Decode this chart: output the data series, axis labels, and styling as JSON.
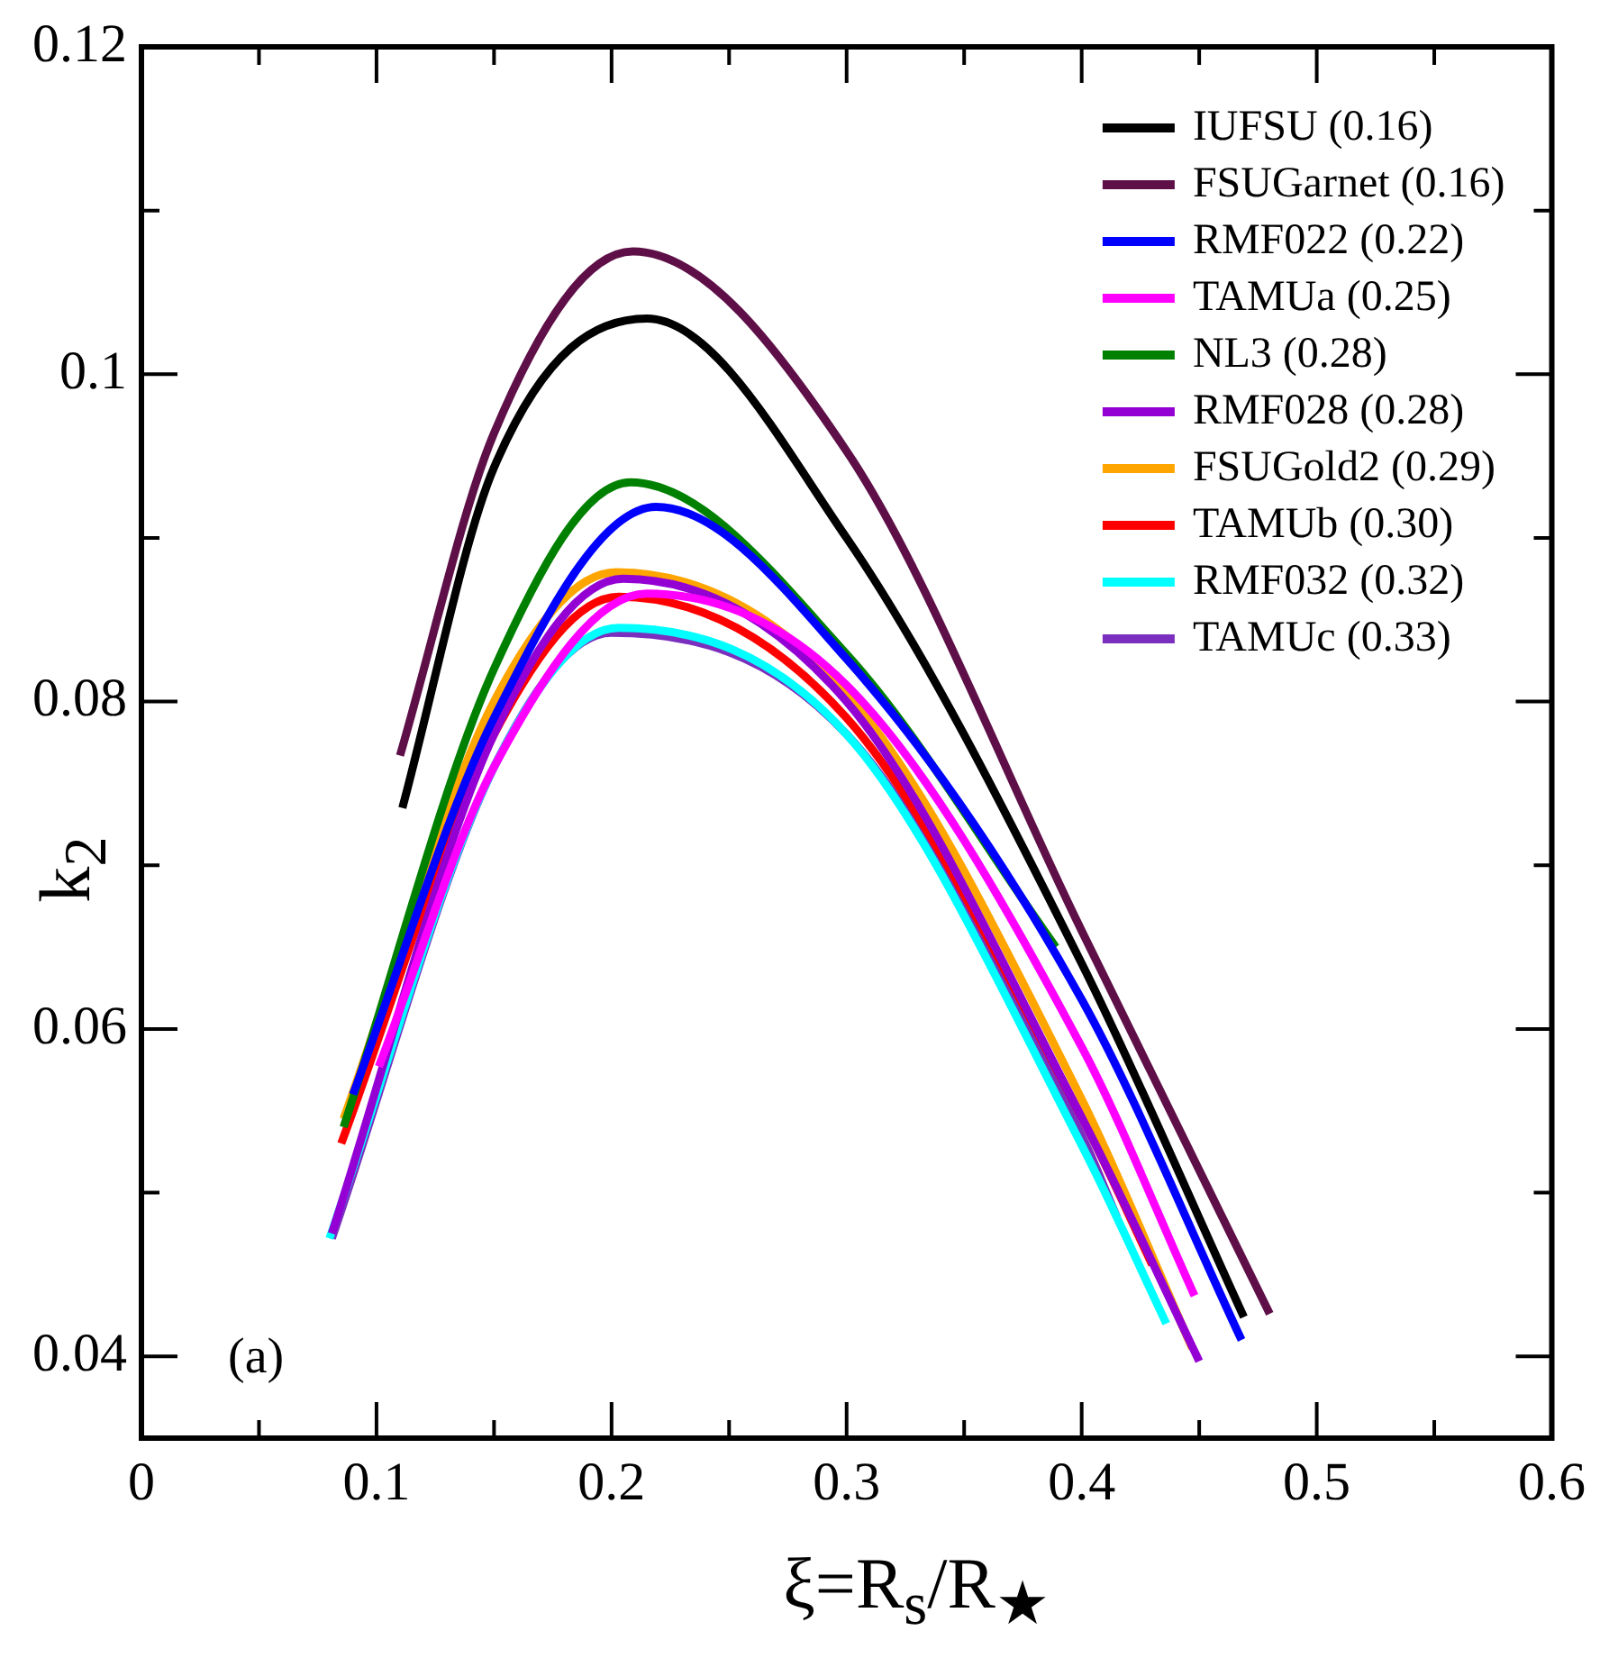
{
  "chart_data": {
    "type": "line",
    "xlabel": "ξ=R$_{s}$/R$_{★}$",
    "ylabel": "k$_{2}$",
    "annotations": [
      "(a)"
    ],
    "xlim": [
      0,
      0.6
    ],
    "xticks": [
      0,
      {
        "value": 0.05,
        "label": null
      },
      0.1,
      {
        "value": 0.15,
        "label": null
      },
      0.2,
      {
        "value": 0.25,
        "label": null
      },
      0.3,
      {
        "value": 0.35,
        "label": null
      },
      0.4,
      {
        "value": 0.45,
        "label": null
      },
      0.5,
      {
        "value": 0.55,
        "label": null
      },
      0.6
    ],
    "ylim": [
      0.035,
      0.12
    ],
    "yticks": [
      0.04,
      {
        "value": 0.05,
        "label": null
      },
      0.06,
      {
        "value": 0.07,
        "label": null
      },
      0.08,
      {
        "value": 0.09,
        "label": null
      },
      0.1,
      {
        "value": 0.11,
        "label": null
      },
      0.12
    ],
    "grid": false,
    "legend": "top right",
    "marker": "none",
    "line_style": "solid",
    "series": [
      {
        "name": "IUFSU (0.16)",
        "color": "#000000",
        "x": [
          0.111,
          0.15,
          0.215,
          0.3,
          0.4,
          0.469
        ],
        "values": [
          0.0735,
          0.0943,
          0.1034,
          0.09,
          0.064,
          0.0424
        ]
      },
      {
        "name": "FSUGarnet (0.16)",
        "color": "#5e0f48",
        "x": [
          0.11,
          0.15,
          0.209,
          0.3,
          0.4,
          0.48
        ],
        "values": [
          0.0767,
          0.0964,
          0.1075,
          0.0953,
          0.066,
          0.0426
        ]
      },
      {
        "name": "RMF022 (0.22)",
        "color": "#0000ff",
        "x": [
          0.09,
          0.15,
          0.219,
          0.3,
          0.4,
          0.468
        ],
        "values": [
          0.056,
          0.079,
          0.0919,
          0.0826,
          0.0618,
          0.041
        ]
      },
      {
        "name": "TAMUa (0.25)",
        "color": "#ff00ff",
        "x": [
          0.101,
          0.15,
          0.215,
          0.3,
          0.4,
          0.448
        ],
        "values": [
          0.0577,
          0.076,
          0.0866,
          0.081,
          0.0589,
          0.0437
        ]
      },
      {
        "name": "NL3 (0.28)",
        "color": "#008000",
        "x": [
          0.086,
          0.15,
          0.208,
          0.3,
          0.389
        ],
        "values": [
          0.054,
          0.082,
          0.0934,
          0.0829,
          0.065
        ]
      },
      {
        "name": "RMF028 (0.28)",
        "color": "#9400d3",
        "x": [
          0.081,
          0.15,
          0.205,
          0.3,
          0.4,
          0.45
        ],
        "values": [
          0.0475,
          0.078,
          0.0875,
          0.08,
          0.0546,
          0.0397
        ]
      },
      {
        "name": "FSUGold2 (0.29)",
        "color": "#ffa500",
        "x": [
          0.086,
          0.15,
          0.202,
          0.3,
          0.4,
          0.447
        ],
        "values": [
          0.0545,
          0.08,
          0.0879,
          0.0805,
          0.0557,
          0.0405
        ]
      },
      {
        "name": "TAMUb (0.30)",
        "color": "#ff0000",
        "x": [
          0.085,
          0.15,
          0.203,
          0.3,
          0.4,
          0.43
        ],
        "values": [
          0.053,
          0.078,
          0.0864,
          0.079,
          0.0546,
          0.0456
        ]
      },
      {
        "name": "RMF032 (0.32)",
        "color": "#00ffff",
        "x": [
          0.08,
          0.15,
          0.203,
          0.3,
          0.4,
          0.436
        ],
        "values": [
          0.0472,
          0.076,
          0.0845,
          0.078,
          0.0529,
          0.042
        ]
      },
      {
        "name": "TAMUc (0.33)",
        "color": "#7b2fbe",
        "x": [
          0.081,
          0.15,
          0.2,
          0.3,
          0.4,
          0.415
        ],
        "values": [
          0.0472,
          0.076,
          0.0842,
          0.078,
          0.0535,
          0.0485
        ]
      }
    ]
  }
}
